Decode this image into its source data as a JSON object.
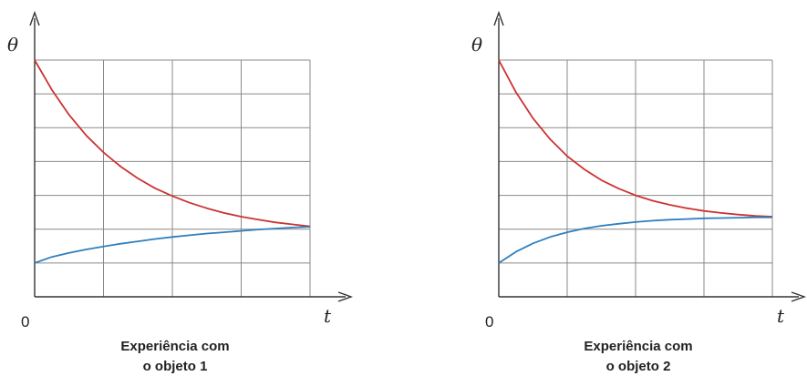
{
  "chart_data": [
    {
      "type": "line",
      "caption_lines": [
        "Experiência com",
        "o objeto 1"
      ],
      "ylabel": "θ",
      "xlabel": "t",
      "origin_label": "0",
      "grid": true,
      "x_grid_divisions": 4,
      "y_grid_divisions": 7,
      "xlim": [
        0,
        4
      ],
      "ylim": [
        0,
        7
      ],
      "series": [
        {
          "color": "#cc3333",
          "x": [
            0,
            0.25,
            0.5,
            0.75,
            1,
            1.25,
            1.5,
            1.75,
            2,
            2.25,
            2.5,
            2.75,
            3,
            3.25,
            3.5,
            3.75,
            4
          ],
          "y": [
            7.0,
            6.12,
            5.38,
            4.77,
            4.27,
            3.85,
            3.5,
            3.21,
            2.98,
            2.78,
            2.62,
            2.48,
            2.37,
            2.28,
            2.2,
            2.14,
            2.08
          ]
        },
        {
          "color": "#2f7fbf",
          "x": [
            0,
            0.25,
            0.5,
            0.75,
            1,
            1.25,
            1.5,
            1.75,
            2,
            2.25,
            2.5,
            2.75,
            3,
            3.25,
            3.5,
            3.75,
            4
          ],
          "y": [
            1.0,
            1.18,
            1.3,
            1.4,
            1.49,
            1.57,
            1.64,
            1.71,
            1.77,
            1.82,
            1.87,
            1.91,
            1.95,
            1.99,
            2.02,
            2.05,
            2.07
          ]
        }
      ]
    },
    {
      "type": "line",
      "caption_lines": [
        "Experiência com",
        "o objeto 2"
      ],
      "ylabel": "θ",
      "xlabel": "t",
      "origin_label": "0",
      "grid": true,
      "x_grid_divisions": 4,
      "y_grid_divisions": 7,
      "xlim": [
        0,
        4
      ],
      "ylim": [
        0,
        7
      ],
      "series": [
        {
          "color": "#cc3333",
          "x": [
            0,
            0.25,
            0.5,
            0.75,
            1,
            1.25,
            1.5,
            1.75,
            2,
            2.25,
            2.5,
            2.75,
            3,
            3.25,
            3.5,
            3.75,
            4
          ],
          "y": [
            7.0,
            6.05,
            5.28,
            4.66,
            4.16,
            3.77,
            3.45,
            3.2,
            3.0,
            2.84,
            2.72,
            2.62,
            2.54,
            2.48,
            2.43,
            2.39,
            2.37
          ]
        },
        {
          "color": "#2f7fbf",
          "x": [
            0,
            0.25,
            0.5,
            0.75,
            1,
            1.25,
            1.5,
            1.75,
            2,
            2.25,
            2.5,
            2.75,
            3,
            3.25,
            3.5,
            3.75,
            4
          ],
          "y": [
            1.0,
            1.33,
            1.58,
            1.77,
            1.91,
            2.02,
            2.1,
            2.16,
            2.21,
            2.25,
            2.28,
            2.3,
            2.32,
            2.33,
            2.34,
            2.35,
            2.35
          ]
        }
      ]
    }
  ]
}
